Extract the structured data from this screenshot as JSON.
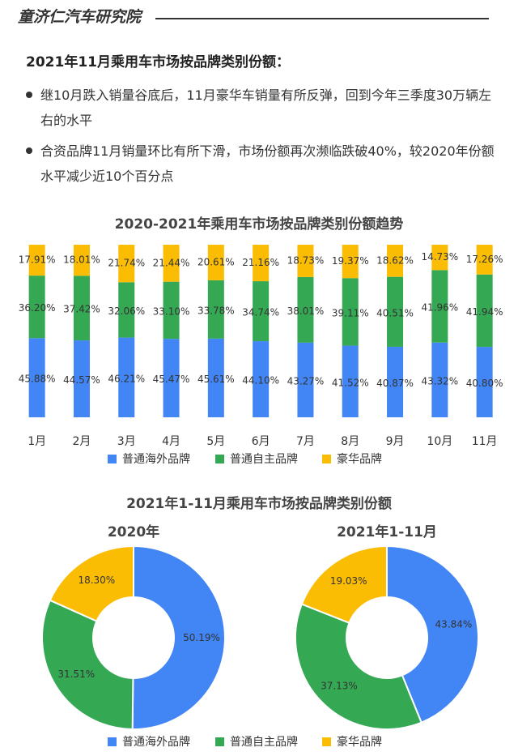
{
  "header": {
    "title": "童济仁汽车研究院"
  },
  "heading": "2021年11月乘用车市场按品牌类别份额：",
  "bullets": [
    "继10月跌入销量谷底后，11月豪华车销量有所反弹，回到今年三季度30万辆左右的水平",
    "合资品牌11月销量环比有所下滑，市场份额再次濒临跌破40%，较2020年份额水平减少近10个百分点"
  ],
  "chart_data": [
    {
      "type": "stacked-bar",
      "title": "2020-2021年乘用车市场按品牌类别份额趋势",
      "categories": [
        "1月",
        "2月",
        "3月",
        "4月",
        "5月",
        "6月",
        "7月",
        "8月",
        "9月",
        "10月",
        "11月"
      ],
      "series": [
        {
          "name": "普通海外品牌",
          "color": "#4285f4",
          "values": [
            45.88,
            44.57,
            46.21,
            45.47,
            45.61,
            44.1,
            43.27,
            41.52,
            40.87,
            43.32,
            40.8
          ],
          "value_labels": [
            "45.88%",
            "44.57%",
            "46.21%",
            "45.47%",
            "45.61%",
            "44.10%",
            "43.27%",
            "41.52%",
            "40.87%",
            "43.32%",
            "40.80%"
          ]
        },
        {
          "name": "普通自主品牌",
          "color": "#34a853",
          "values": [
            36.2,
            37.42,
            32.06,
            33.1,
            33.78,
            34.74,
            38.01,
            39.11,
            40.51,
            41.96,
            41.94
          ],
          "value_labels": [
            "36.20%",
            "37.42%",
            "32.06%",
            "33.10%",
            "33.78%",
            "34.74%",
            "38.01%",
            "39.11%",
            "40.51%",
            "41.96%",
            "41.94%"
          ]
        },
        {
          "name": "豪华品牌",
          "color": "#fbbc04",
          "values": [
            17.91,
            18.01,
            21.74,
            21.44,
            20.61,
            21.16,
            18.73,
            19.37,
            18.62,
            14.73,
            17.26
          ],
          "value_labels": [
            "17.91%",
            "18.01%",
            "21.74%",
            "21.44%",
            "20.61%",
            "21.16%",
            "18.73%",
            "19.37%",
            "18.62%",
            "14.73%",
            "17.26%"
          ]
        }
      ]
    },
    {
      "type": "donut",
      "title": "2021年1-11月乘用车市场按品牌类别份额",
      "subtitle": "2020年",
      "categories": [
        "普通海外品牌",
        "普通自主品牌",
        "豪华品牌"
      ],
      "colors": [
        "#4285f4",
        "#34a853",
        "#fbbc04"
      ],
      "values": [
        50.19,
        31.51,
        18.3
      ],
      "value_labels": [
        "50.19%",
        "31.51%",
        "18.30%"
      ]
    },
    {
      "type": "donut",
      "subtitle": "2021年1-11月",
      "colors": [
        "#4285f4",
        "#34a853",
        "#fbbc04"
      ],
      "values": [
        43.84,
        37.13,
        19.03
      ],
      "value_labels": [
        "43.84%",
        "37.13%",
        "19.03%"
      ]
    }
  ]
}
